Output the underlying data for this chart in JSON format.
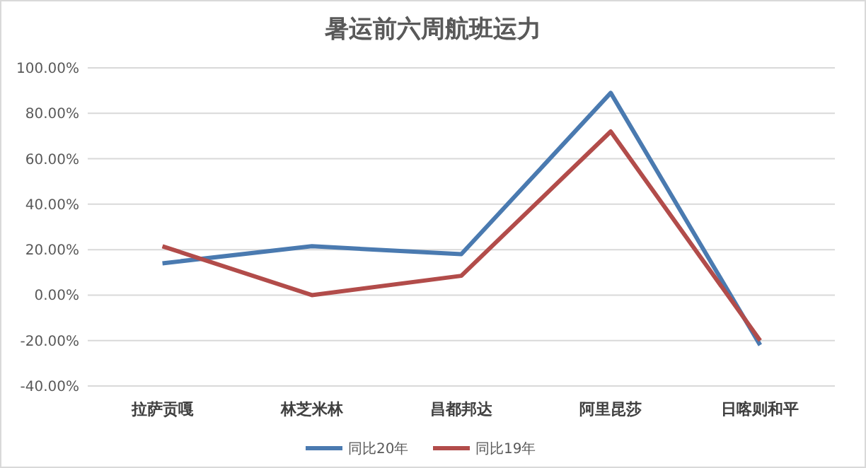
{
  "chart_data": {
    "type": "line",
    "title": "暑运前六周航班运力",
    "categories": [
      "拉萨贡嘎",
      "林芝米林",
      "昌都邦达",
      "阿里昆莎",
      "日喀则和平"
    ],
    "series": [
      {
        "name": "同比20年",
        "color": "#4a7ab0",
        "values": [
          14,
          21.5,
          18,
          89,
          -22
        ]
      },
      {
        "name": "同比19年",
        "color": "#b24c4a",
        "values": [
          21.5,
          0,
          8.5,
          72,
          -20
        ]
      }
    ],
    "ylim": [
      -40,
      100
    ],
    "yticks": [
      {
        "value": -40,
        "label": "-40.00%"
      },
      {
        "value": -20,
        "label": "-20.00%"
      },
      {
        "value": 0,
        "label": "0.00%"
      },
      {
        "value": 20,
        "label": "20.00%"
      },
      {
        "value": 40,
        "label": "40.00%"
      },
      {
        "value": 60,
        "label": "60.00%"
      },
      {
        "value": 80,
        "label": "80.00%"
      },
      {
        "value": 100,
        "label": "100.00%"
      }
    ],
    "grid": "y",
    "legend": "bottom",
    "marker": "none",
    "line_style": "solid"
  }
}
